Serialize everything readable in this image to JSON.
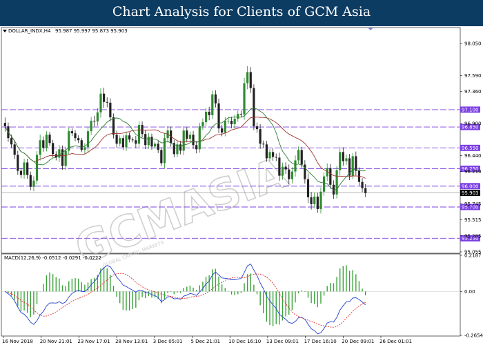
{
  "header": {
    "title": "Chart Analysis for Clients of GCM Asia"
  },
  "colors": {
    "header_bg": "#0d3c63",
    "bull": "#2e8b2e",
    "bear": "#222222",
    "ma_fast": "#2e7d32",
    "ma_slow": "#a0302a",
    "level_line": "#7b3fe4",
    "level_bg": "#7b3fe4",
    "macd_line": "#1f3fd1",
    "signal_line": "#e03030",
    "hist": "#3aa23a",
    "price_tag_bg": "#000000"
  },
  "watermark": {
    "text": "GCMASIA",
    "sub": "GLOBAL CAPITAL MARKETS"
  },
  "chart_data": [
    {
      "type": "candlestick",
      "symbol": "DOLLAR_INDX,H4",
      "ohlc_label": "95.987 95.997 95.873 95.903",
      "ylim": [
        95.055,
        98.25
      ],
      "y_ticks": [
        "98.050",
        "97.590",
        "97.360",
        "96.900",
        "96.440",
        "96.210",
        "95.745",
        "95.515",
        "95.285",
        "95.055"
      ],
      "current_price": "95.903",
      "levels": [
        "97.100",
        "96.850",
        "96.550",
        "96.250",
        "96.000",
        "95.700",
        "95.250"
      ],
      "x_ticks": [
        "16 Nov 2018",
        "20 Nov 21:01",
        "23 Nov 17:01",
        "28 Nov 13:01",
        "3 Dec 05:01",
        "5 Dec 21:01",
        "10 Dec 16:10",
        "13 Dec 09:01",
        "17 Dec 16:10",
        "20 Dec 09:01",
        "26 Dec 01:01"
      ],
      "close": [
        96.86,
        96.69,
        96.6,
        96.45,
        96.22,
        96.16,
        96.34,
        96.16,
        95.99,
        96.08,
        96.45,
        96.66,
        96.55,
        96.74,
        96.62,
        96.46,
        96.41,
        96.53,
        96.29,
        96.51,
        96.79,
        96.76,
        96.69,
        96.66,
        96.52,
        96.56,
        96.79,
        96.94,
        96.93,
        97.06,
        97.33,
        97.21,
        97.2,
        96.99,
        96.74,
        96.61,
        96.69,
        96.56,
        96.73,
        96.67,
        96.66,
        96.61,
        96.88,
        96.75,
        96.59,
        96.71,
        96.57,
        96.61,
        96.52,
        96.33,
        96.69,
        96.8,
        96.62,
        96.46,
        96.6,
        96.51,
        96.8,
        96.68,
        96.74,
        96.59,
        96.53,
        96.86,
        96.92,
        97.07,
        97.02,
        97.32,
        97.19,
        96.83,
        96.77,
        96.94,
        96.94,
        96.89,
        96.97,
        97.04,
        97.03,
        97.48,
        97.64,
        97.41,
        96.86,
        96.82,
        96.61,
        96.6,
        96.4,
        96.49,
        96.42,
        96.41,
        96.15,
        96.28,
        96.24,
        96.1,
        96.21,
        96.37,
        96.52,
        96.31,
        96.1,
        95.84,
        95.74,
        95.85,
        95.67,
        95.92,
        96.14,
        96.26,
        96.02,
        95.88,
        96.23,
        96.49,
        96.36,
        96.4,
        96.15,
        96.43,
        96.22,
        96.06,
        95.97,
        95.9
      ],
      "range": [
        0.17,
        0.12,
        0.11,
        0.13,
        0.13,
        0.1,
        0.12,
        0.12,
        0.11,
        0.14,
        0.12,
        0.18,
        0.12,
        0.11,
        0.09,
        0.1,
        0.09,
        0.14,
        0.12,
        0.13,
        0.11,
        0.09,
        0.1,
        0.09,
        0.07,
        0.13,
        0.15,
        0.12,
        0.16,
        0.14,
        0.17,
        0.19,
        0.15,
        0.14,
        0.12,
        0.13,
        0.09,
        0.09,
        0.12,
        0.09,
        0.07,
        0.14,
        0.11,
        0.11,
        0.13,
        0.12,
        0.1,
        0.06,
        0.1,
        0.09,
        0.15,
        0.14,
        0.12,
        0.1,
        0.1,
        0.12,
        0.14,
        0.11,
        0.1,
        0.12,
        0.13,
        0.11,
        0.12,
        0.12,
        0.16,
        0.12,
        0.13,
        0.15,
        0.12,
        0.12,
        0.1,
        0.13,
        0.13,
        0.1,
        0.1,
        0.17,
        0.19,
        0.16,
        0.12,
        0.12,
        0.16,
        0.1,
        0.11,
        0.09,
        0.12,
        0.11,
        0.16,
        0.13,
        0.14,
        0.16,
        0.14,
        0.16,
        0.11,
        0.1,
        0.14,
        0.18,
        0.17,
        0.13,
        0.12,
        0.14,
        0.13,
        0.15,
        0.13,
        0.14,
        0.13,
        0.17,
        0.15,
        0.12,
        0.14,
        0.1,
        0.15,
        0.11,
        0.12,
        0.13
      ]
    },
    {
      "type": "macd",
      "label": "MACD(12,26,9) -0.0512 -0.0291 -0.0222",
      "ylim": [
        -0.2654,
        0.2187
      ],
      "y_ticks": [
        "0.2187",
        "0.00",
        "-0.2654"
      ]
    }
  ]
}
